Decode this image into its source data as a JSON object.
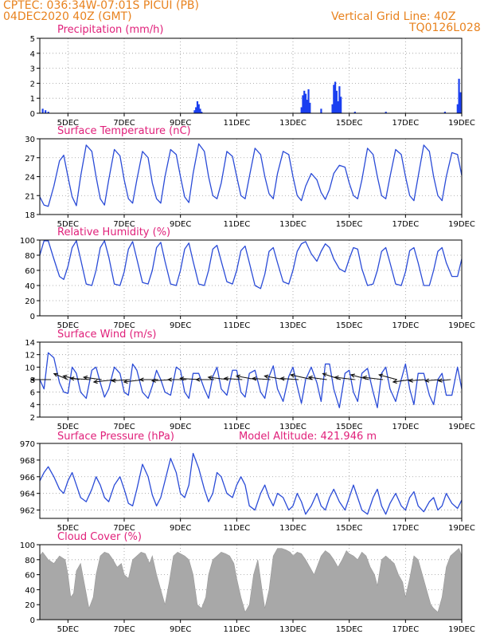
{
  "header": {
    "location_line": "CPTEC:   036:34W-07:01S   PICUI (PB)",
    "run_line": "04DEC2020 40Z (GMT)",
    "grid_note": "Vertical Grid Line: 40Z",
    "model_code": "TQ0126L028"
  },
  "colors": {
    "header": "#e8821e",
    "title": "#e0207a",
    "line": "#2a4bd7",
    "bar": "#1a3ff0",
    "cloud": "#a8a8a8"
  },
  "chart_data": [
    {
      "type": "bar",
      "title": "Precipitation (mm/h)",
      "ylim": [
        0,
        5
      ],
      "yticks": [
        0,
        1,
        2,
        3,
        4,
        5
      ],
      "xticks": [
        "5DEC",
        "7DEC",
        "9DEC",
        "11DEC",
        "13DEC",
        "15DEC",
        "17DEC",
        "19DEC"
      ],
      "grid": true,
      "x": [
        4.1,
        4.2,
        4.3,
        9.5,
        9.55,
        9.6,
        9.65,
        9.7,
        9.75,
        13.3,
        13.35,
        13.4,
        13.45,
        13.5,
        13.55,
        13.6,
        14.0,
        14.4,
        14.45,
        14.5,
        14.55,
        14.6,
        14.65,
        14.7,
        15.2,
        16.3,
        18.4,
        18.85,
        18.9,
        18.95
      ],
      "values": [
        0.3,
        0.2,
        0.1,
        0.2,
        0.4,
        0.8,
        0.6,
        0.3,
        0.1,
        0.4,
        1.2,
        1.5,
        1.3,
        0.9,
        1.6,
        0.7,
        0.3,
        0.6,
        1.9,
        2.1,
        1.5,
        0.8,
        1.8,
        1.1,
        0.1,
        0.1,
        0.1,
        0.6,
        2.3,
        1.4
      ]
    },
    {
      "type": "line",
      "title": "Surface Temperature (nC)",
      "ylim": [
        18,
        30
      ],
      "yticks": [
        18,
        21,
        24,
        27,
        30
      ],
      "xticks": [
        "5DEC",
        "7DEC",
        "9DEC",
        "11DEC",
        "13DEC",
        "15DEC",
        "17DEC",
        "19DEC"
      ],
      "grid": true,
      "x": [
        4.0,
        4.15,
        4.3,
        4.5,
        4.7,
        4.85,
        5.0,
        5.15,
        5.3,
        5.45,
        5.65,
        5.85,
        6.0,
        6.15,
        6.3,
        6.45,
        6.65,
        6.85,
        7.0,
        7.15,
        7.3,
        7.45,
        7.65,
        7.85,
        8.0,
        8.15,
        8.3,
        8.45,
        8.65,
        8.85,
        9.0,
        9.15,
        9.3,
        9.45,
        9.65,
        9.85,
        10.0,
        10.15,
        10.3,
        10.45,
        10.65,
        10.85,
        11.0,
        11.15,
        11.3,
        11.45,
        11.65,
        11.85,
        12.0,
        12.15,
        12.3,
        12.45,
        12.65,
        12.85,
        13.0,
        13.15,
        13.3,
        13.45,
        13.65,
        13.85,
        14.0,
        14.15,
        14.3,
        14.45,
        14.65,
        14.85,
        15.0,
        15.15,
        15.3,
        15.45,
        15.65,
        15.85,
        16.0,
        16.15,
        16.3,
        16.45,
        16.65,
        16.85,
        17.0,
        17.15,
        17.3,
        17.45,
        17.65,
        17.85,
        18.0,
        18.15,
        18.3,
        18.45,
        18.65,
        18.85,
        19.0
      ],
      "values": [
        20.8,
        19.5,
        19.3,
        22.5,
        26.5,
        27.4,
        24.0,
        20.8,
        19.4,
        24.0,
        29.0,
        28.0,
        24.0,
        20.5,
        19.5,
        23.5,
        28.3,
        27.3,
        23.5,
        20.5,
        19.8,
        23.5,
        28.0,
        27.0,
        23.0,
        20.5,
        19.8,
        24.0,
        28.3,
        27.5,
        24.0,
        20.8,
        19.9,
        24.5,
        29.2,
        28.0,
        24.0,
        21.0,
        20.5,
        23.0,
        28.0,
        27.2,
        24.0,
        21.0,
        20.5,
        24.0,
        28.5,
        27.5,
        24.0,
        21.3,
        20.5,
        24.5,
        28.0,
        27.5,
        24.0,
        21.0,
        20.2,
        22.5,
        24.5,
        23.5,
        21.5,
        20.4,
        22.0,
        24.5,
        25.8,
        25.5,
        23.0,
        21.0,
        20.5,
        23.5,
        28.5,
        27.5,
        24.0,
        21.0,
        20.5,
        24.0,
        28.3,
        27.5,
        24.0,
        21.0,
        20.2,
        24.0,
        29.0,
        28.0,
        24.0,
        21.0,
        20.2,
        24.0,
        27.8,
        27.5,
        24.2
      ]
    },
    {
      "type": "line",
      "title": "Relative Humidity (%)",
      "ylim": [
        0,
        100
      ],
      "yticks": [
        0,
        20,
        40,
        60,
        80,
        100
      ],
      "xticks": [
        "5DEC",
        "7DEC",
        "9DEC",
        "11DEC",
        "13DEC",
        "15DEC",
        "17DEC",
        "19DEC"
      ],
      "grid": true,
      "x": [
        4.0,
        4.15,
        4.3,
        4.5,
        4.7,
        4.85,
        5.0,
        5.15,
        5.3,
        5.45,
        5.65,
        5.85,
        6.0,
        6.15,
        6.3,
        6.45,
        6.65,
        6.85,
        7.0,
        7.15,
        7.3,
        7.45,
        7.65,
        7.85,
        8.0,
        8.15,
        8.3,
        8.45,
        8.65,
        8.85,
        9.0,
        9.15,
        9.3,
        9.45,
        9.65,
        9.85,
        10.0,
        10.15,
        10.3,
        10.45,
        10.65,
        10.85,
        11.0,
        11.15,
        11.3,
        11.45,
        11.65,
        11.85,
        12.0,
        12.15,
        12.3,
        12.45,
        12.65,
        12.85,
        13.0,
        13.15,
        13.3,
        13.45,
        13.65,
        13.85,
        14.0,
        14.15,
        14.3,
        14.45,
        14.65,
        14.85,
        15.0,
        15.15,
        15.3,
        15.45,
        15.65,
        15.85,
        16.0,
        16.15,
        16.3,
        16.45,
        16.65,
        16.85,
        17.0,
        17.15,
        17.3,
        17.45,
        17.65,
        17.85,
        18.0,
        18.15,
        18.3,
        18.45,
        18.65,
        18.85,
        19.0
      ],
      "values": [
        80,
        99,
        99,
        75,
        52,
        48,
        65,
        90,
        99,
        75,
        42,
        40,
        60,
        90,
        99,
        78,
        42,
        40,
        58,
        88,
        98,
        75,
        44,
        42,
        60,
        90,
        97,
        72,
        42,
        40,
        60,
        88,
        96,
        72,
        42,
        40,
        60,
        88,
        93,
        72,
        45,
        42,
        60,
        86,
        92,
        70,
        40,
        36,
        55,
        85,
        90,
        70,
        45,
        42,
        60,
        85,
        95,
        98,
        82,
        72,
        85,
        95,
        90,
        75,
        62,
        58,
        75,
        90,
        88,
        62,
        40,
        42,
        60,
        85,
        90,
        70,
        42,
        40,
        58,
        86,
        90,
        70,
        40,
        40,
        60,
        85,
        90,
        70,
        52,
        52,
        75
      ]
    },
    {
      "type": "line",
      "title": "Surface Wind (m/s)",
      "ylim": [
        2,
        14
      ],
      "yticks": [
        2,
        4,
        6,
        8,
        10,
        12,
        14
      ],
      "xticks": [
        "5DEC",
        "7DEC",
        "9DEC",
        "11DEC",
        "13DEC",
        "15DEC",
        "17DEC",
        "19DEC"
      ],
      "grid": true,
      "x": [
        4.0,
        4.15,
        4.3,
        4.5,
        4.7,
        4.85,
        5.0,
        5.15,
        5.3,
        5.45,
        5.65,
        5.85,
        6.0,
        6.15,
        6.3,
        6.45,
        6.65,
        6.85,
        7.0,
        7.15,
        7.3,
        7.45,
        7.65,
        7.85,
        8.0,
        8.15,
        8.3,
        8.45,
        8.65,
        8.85,
        9.0,
        9.15,
        9.3,
        9.45,
        9.65,
        9.85,
        10.0,
        10.15,
        10.3,
        10.45,
        10.65,
        10.85,
        11.0,
        11.15,
        11.3,
        11.45,
        11.65,
        11.85,
        12.0,
        12.15,
        12.3,
        12.45,
        12.65,
        12.85,
        13.0,
        13.15,
        13.3,
        13.45,
        13.65,
        13.85,
        14.0,
        14.15,
        14.3,
        14.45,
        14.65,
        14.85,
        15.0,
        15.15,
        15.3,
        15.45,
        15.65,
        15.85,
        16.0,
        16.15,
        16.3,
        16.45,
        16.65,
        16.85,
        17.0,
        17.15,
        17.3,
        17.45,
        17.65,
        17.85,
        18.0,
        18.15,
        18.3,
        18.45,
        18.65,
        18.85,
        19.0
      ],
      "values": [
        8.0,
        6.5,
        12.3,
        11.5,
        7.5,
        6.0,
        5.8,
        10.0,
        9.0,
        6.0,
        5.0,
        9.5,
        10.0,
        7.5,
        5.2,
        6.5,
        10.0,
        9.0,
        6.0,
        5.5,
        10.5,
        9.5,
        6.0,
        5.0,
        7.0,
        9.5,
        8.0,
        6.0,
        5.5,
        10.0,
        9.5,
        6.0,
        5.0,
        9.0,
        9.0,
        6.5,
        5.0,
        8.5,
        10.0,
        6.5,
        5.5,
        9.5,
        9.5,
        6.0,
        5.2,
        9.0,
        9.5,
        6.0,
        5.0,
        8.5,
        10.2,
        6.5,
        4.5,
        8.5,
        10.0,
        7.0,
        4.2,
        8.0,
        10.0,
        7.5,
        4.5,
        10.5,
        10.5,
        6.5,
        3.5,
        9.0,
        9.5,
        6.0,
        4.5,
        9.0,
        9.8,
        6.0,
        3.5,
        9.0,
        10.0,
        6.5,
        4.5,
        8.0,
        10.5,
        6.5,
        4.0,
        9.0,
        9.0,
        5.5,
        4.0,
        8.0,
        9.0,
        5.5,
        5.5,
        10.0,
        6.5
      ],
      "arrow_times": [
        4.4,
        5.0,
        5.4,
        5.8,
        6.2,
        6.7,
        7.2,
        7.7,
        8.2,
        8.7,
        9.2,
        9.7,
        10.2,
        10.7,
        11.2,
        11.7,
        12.2,
        12.7,
        13.2,
        13.7,
        14.2,
        14.7,
        15.2,
        15.7,
        16.2,
        16.7,
        17.2,
        17.7,
        18.2,
        18.6
      ],
      "arrow_u": [
        -5.0,
        -3.5,
        -4.0,
        -5.0,
        -4.5,
        -5.5,
        -4.5,
        -5.0,
        -4.5,
        -5.0,
        -4.5,
        -5.0,
        -4.5,
        -5.0,
        -4.5,
        -5.0,
        -4.5,
        -5.0,
        -4.5,
        -5.5,
        -4.5,
        -4.5,
        -5.0,
        -4.5,
        -5.0,
        -4.5,
        -4.5,
        -4.0,
        -3.5,
        -3.0
      ],
      "arrow_v": [
        0,
        2.5,
        1.5,
        0.5,
        1.0,
        -1.0,
        -0.5,
        -1.0,
        0,
        -0.5,
        0,
        0.5,
        0,
        1.0,
        0.5,
        1.5,
        0.5,
        1.5,
        0.5,
        2.0,
        1.0,
        2.5,
        1.0,
        2.0,
        1.0,
        2.0,
        -1.0,
        -0.5,
        -0.5,
        -0.5
      ]
    },
    {
      "type": "line",
      "title": "Surface Pressure (hPa)",
      "annotation": "Model Altitude: 421.946 m",
      "ylim": [
        961,
        970
      ],
      "yticks": [
        962,
        964,
        966,
        968,
        970
      ],
      "xticks": [
        "5DEC",
        "7DEC",
        "9DEC",
        "11DEC",
        "13DEC",
        "15DEC",
        "17DEC",
        "19DEC"
      ],
      "grid": true,
      "x": [
        4.0,
        4.15,
        4.3,
        4.5,
        4.7,
        4.85,
        5.0,
        5.15,
        5.3,
        5.45,
        5.65,
        5.85,
        6.0,
        6.15,
        6.3,
        6.45,
        6.65,
        6.85,
        7.0,
        7.15,
        7.3,
        7.45,
        7.65,
        7.85,
        8.0,
        8.15,
        8.3,
        8.45,
        8.65,
        8.85,
        9.0,
        9.15,
        9.3,
        9.45,
        9.65,
        9.85,
        10.0,
        10.15,
        10.3,
        10.45,
        10.65,
        10.85,
        11.0,
        11.15,
        11.3,
        11.45,
        11.65,
        11.85,
        12.0,
        12.15,
        12.3,
        12.45,
        12.65,
        12.85,
        13.0,
        13.15,
        13.3,
        13.45,
        13.65,
        13.85,
        14.0,
        14.15,
        14.3,
        14.45,
        14.65,
        14.85,
        15.0,
        15.15,
        15.3,
        15.45,
        15.65,
        15.85,
        16.0,
        16.15,
        16.3,
        16.45,
        16.65,
        16.85,
        17.0,
        17.15,
        17.3,
        17.45,
        17.65,
        17.85,
        18.0,
        18.15,
        18.3,
        18.45,
        18.65,
        18.85,
        19.0
      ],
      "values": [
        965.5,
        966.5,
        967.2,
        966.0,
        964.5,
        964.0,
        965.5,
        966.5,
        965.0,
        963.5,
        963.0,
        964.5,
        966.0,
        965.0,
        963.5,
        963.0,
        965.0,
        966.0,
        964.5,
        962.8,
        962.5,
        964.5,
        967.5,
        966.0,
        963.8,
        962.5,
        963.5,
        965.5,
        968.2,
        966.5,
        964.0,
        963.5,
        965.0,
        968.8,
        967.0,
        964.5,
        963.0,
        964.0,
        966.5,
        966.0,
        964.0,
        963.5,
        965.0,
        966.0,
        965.0,
        962.5,
        962.0,
        964.0,
        965.0,
        963.5,
        962.5,
        964.0,
        963.5,
        962.0,
        962.5,
        964.0,
        963.0,
        961.5,
        962.5,
        964.0,
        962.5,
        962.0,
        963.5,
        964.5,
        963.0,
        962.0,
        963.5,
        965.0,
        963.5,
        962.0,
        961.5,
        963.5,
        964.5,
        962.5,
        961.5,
        962.8,
        964.0,
        962.5,
        962.0,
        963.5,
        964.2,
        962.5,
        961.8,
        963.0,
        963.5,
        962.0,
        962.5,
        964.0,
        962.8,
        962.2,
        963.2
      ]
    },
    {
      "type": "area",
      "title": "Cloud Cover (%)",
      "ylim": [
        0,
        100
      ],
      "yticks": [
        0,
        20,
        40,
        60,
        80,
        100
      ],
      "xticks": [
        "5DEC",
        "7DEC",
        "9DEC",
        "11DEC",
        "13DEC",
        "15DEC",
        "17DEC",
        "19DEC"
      ],
      "grid": true,
      "x": [
        4.0,
        4.1,
        4.3,
        4.5,
        4.7,
        4.9,
        5.0,
        5.1,
        5.2,
        5.3,
        5.45,
        5.6,
        5.75,
        5.9,
        6.0,
        6.15,
        6.3,
        6.45,
        6.6,
        6.75,
        6.9,
        7.0,
        7.15,
        7.3,
        7.45,
        7.6,
        7.75,
        7.9,
        8.0,
        8.15,
        8.3,
        8.45,
        8.6,
        8.75,
        8.9,
        9.0,
        9.15,
        9.3,
        9.45,
        9.6,
        9.75,
        9.9,
        10.0,
        10.15,
        10.3,
        10.45,
        10.6,
        10.75,
        10.9,
        11.0,
        11.15,
        11.3,
        11.45,
        11.6,
        11.75,
        11.9,
        12.0,
        12.15,
        12.3,
        12.45,
        12.6,
        12.75,
        12.9,
        13.0,
        13.15,
        13.3,
        13.45,
        13.6,
        13.75,
        13.9,
        14.0,
        14.15,
        14.3,
        14.45,
        14.6,
        14.75,
        14.9,
        15.0,
        15.15,
        15.3,
        15.45,
        15.6,
        15.75,
        15.9,
        16.0,
        16.15,
        16.3,
        16.45,
        16.6,
        16.75,
        16.9,
        17.0,
        17.15,
        17.3,
        17.45,
        17.6,
        17.75,
        17.9,
        18.0,
        18.15,
        18.3,
        18.45,
        18.6,
        18.75,
        18.9,
        19.0
      ],
      "values": [
        85,
        90,
        80,
        75,
        85,
        80,
        60,
        30,
        35,
        65,
        75,
        45,
        15,
        30,
        60,
        85,
        90,
        88,
        80,
        70,
        75,
        60,
        55,
        80,
        85,
        90,
        88,
        75,
        85,
        60,
        40,
        20,
        50,
        85,
        90,
        88,
        85,
        80,
        60,
        20,
        15,
        30,
        60,
        80,
        85,
        90,
        88,
        85,
        75,
        55,
        30,
        10,
        20,
        60,
        80,
        40,
        15,
        40,
        85,
        95,
        95,
        93,
        90,
        85,
        90,
        88,
        80,
        70,
        60,
        75,
        85,
        92,
        88,
        80,
        70,
        80,
        92,
        88,
        85,
        80,
        90,
        85,
        70,
        60,
        45,
        80,
        85,
        80,
        75,
        60,
        50,
        30,
        55,
        85,
        80,
        60,
        40,
        20,
        15,
        10,
        30,
        70,
        85,
        90,
        95,
        85
      ]
    }
  ]
}
